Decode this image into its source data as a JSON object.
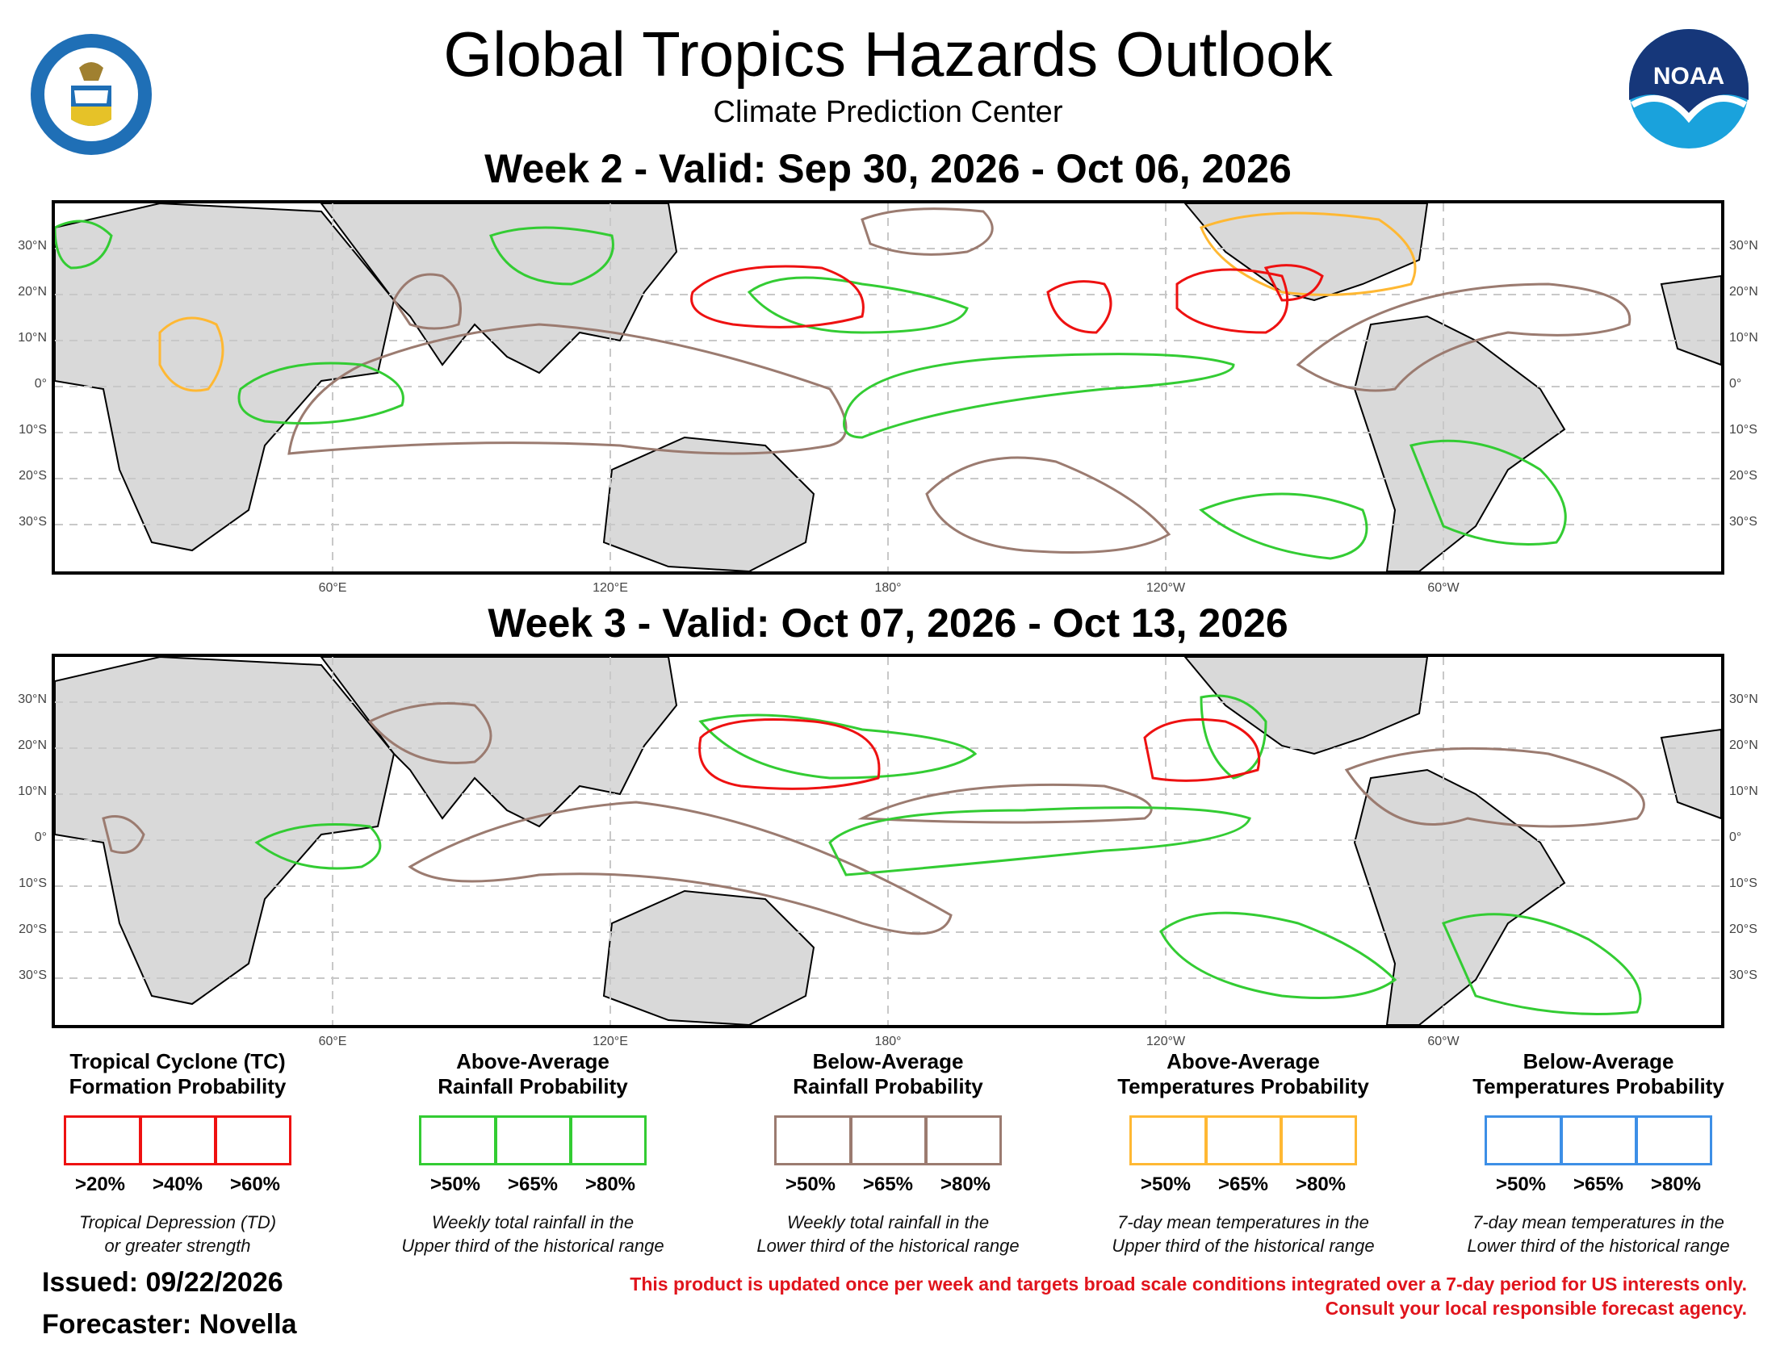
{
  "header": {
    "title": "Global Tropics Hazards Outlook",
    "subtitle": "Climate Prediction Center",
    "doc_seal_icon": "department-of-commerce-seal-icon",
    "noaa_logo_text": "NOAA"
  },
  "week2": {
    "title": "Week 2 - Valid: Sep 30, 2026 - Oct 06, 2026"
  },
  "week3": {
    "title": "Week 3 - Valid: Oct 07, 2026 - Oct 13, 2026"
  },
  "axes": {
    "lat_labels": [
      "30°N",
      "20°N",
      "10°N",
      "0°",
      "10°S",
      "20°S",
      "30°S"
    ],
    "lon_labels": [
      "60°E",
      "120°E",
      "180°",
      "120°W",
      "60°W"
    ]
  },
  "colors": {
    "tc": "#ee1111",
    "above_rain": "#33cc33",
    "below_rain": "#9b7b70",
    "above_temp": "#ffb833",
    "below_temp": "#3d8fe6",
    "land": "#d9d9d9"
  },
  "legend": [
    {
      "title_line1": "Tropical Cyclone (TC)",
      "title_line2": "Formation Probability",
      "color": "#ee1111",
      "levels": [
        ">20%",
        ">40%",
        ">60%"
      ],
      "note_line1": "Tropical Depression (TD)",
      "note_line2": "or greater strength"
    },
    {
      "title_line1": "Above-Average",
      "title_line2": "Rainfall Probability",
      "color": "#33cc33",
      "levels": [
        ">50%",
        ">65%",
        ">80%"
      ],
      "note_line1": "Weekly total rainfall in the",
      "note_line2": "Upper third of the historical range"
    },
    {
      "title_line1": "Below-Average",
      "title_line2": "Rainfall Probability",
      "color": "#9b7b70",
      "levels": [
        ">50%",
        ">65%",
        ">80%"
      ],
      "note_line1": "Weekly total rainfall in the",
      "note_line2": "Lower third of the historical range"
    },
    {
      "title_line1": "Above-Average",
      "title_line2": "Temperatures Probability",
      "color": "#ffb833",
      "levels": [
        ">50%",
        ">65%",
        ">80%"
      ],
      "note_line1": "7-day mean temperatures in the",
      "note_line2": "Upper third of the historical range"
    },
    {
      "title_line1": "Below-Average",
      "title_line2": "Temperatures Probability",
      "color": "#3d8fe6",
      "levels": [
        ">50%",
        ">65%",
        ">80%"
      ],
      "note_line1": "7-day mean temperatures in the",
      "note_line2": "Lower third of the historical range"
    }
  ],
  "footer": {
    "issued": "Issued: 09/22/2026",
    "forecaster": "Forecaster: Novella",
    "disclaimer_line1": "This product is updated once per week and targets broad scale conditions integrated over a 7-day period for US interests only.",
    "disclaimer_line2": "Consult your local responsible forecast agency."
  }
}
